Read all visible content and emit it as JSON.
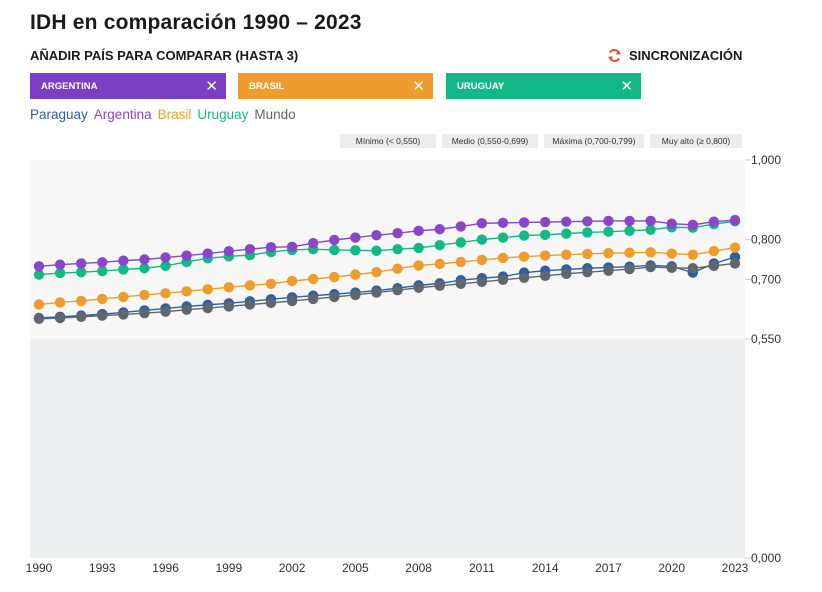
{
  "header": {
    "title": "IDH en comparación 1990 – 2023",
    "subtitle": "AÑADIR PAÍS PARA COMPARAR (HASTA 3)",
    "sync_label": "SINCRONIZACIÓN",
    "sync_icon": "sync-icon"
  },
  "chips": [
    {
      "label": "ARGENTINA",
      "color": "#7b3fc4",
      "close_icon": "close-icon"
    },
    {
      "label": "BRASIL",
      "color": "#ee9d2c",
      "close_icon": "close-icon"
    },
    {
      "label": "URUGUAY",
      "color": "#12b886",
      "close_icon": "close-icon"
    }
  ],
  "legend": [
    {
      "name": "Paraguay",
      "color": "#2f5f9e"
    },
    {
      "name": "Argentina",
      "color": "#8a45c8"
    },
    {
      "name": "Brasil",
      "color": "#ee9d2c"
    },
    {
      "name": "Uruguay",
      "color": "#12b886"
    },
    {
      "name": "Mundo",
      "color": "#5f6670"
    }
  ],
  "ranges": [
    {
      "label": "Mínimo (< 0,550)"
    },
    {
      "label": "Medio (0,550-0,699)"
    },
    {
      "label": "Máxima (0,700-0,799)"
    },
    {
      "label": "Muy alto (≥ 0,800)"
    }
  ],
  "chart_data": {
    "type": "line",
    "x": [
      1990,
      1991,
      1992,
      1993,
      1994,
      1995,
      1996,
      1997,
      1998,
      1999,
      2000,
      2001,
      2002,
      2003,
      2004,
      2005,
      2006,
      2007,
      2008,
      2009,
      2010,
      2011,
      2012,
      2013,
      2014,
      2015,
      2016,
      2017,
      2018,
      2019,
      2020,
      2021,
      2022,
      2023
    ],
    "x_tick_labels": [
      "1990",
      "1993",
      "1996",
      "1999",
      "2002",
      "2005",
      "2008",
      "2011",
      "2014",
      "2017",
      "2020",
      "2023"
    ],
    "y_tick_labels": [
      "1,000",
      "0,800",
      "0,700",
      "0,550",
      "0,000"
    ],
    "y_ticks": [
      1.0,
      0.8,
      0.7,
      0.55,
      0.0
    ],
    "ylim": [
      0,
      1
    ],
    "grid": false,
    "series": [
      {
        "name": "Paraguay",
        "color": "#2f5f9e",
        "values": [
          0.603,
          0.606,
          0.609,
          0.613,
          0.617,
          0.622,
          0.627,
          0.632,
          0.636,
          0.64,
          0.645,
          0.65,
          0.655,
          0.659,
          0.663,
          0.667,
          0.672,
          0.678,
          0.685,
          0.69,
          0.698,
          0.703,
          0.707,
          0.717,
          0.722,
          0.725,
          0.728,
          0.73,
          0.732,
          0.735,
          0.733,
          0.717,
          0.74,
          0.756
        ]
      },
      {
        "name": "Argentina",
        "color": "#8a45c8",
        "values": [
          0.733,
          0.737,
          0.74,
          0.743,
          0.747,
          0.75,
          0.755,
          0.76,
          0.765,
          0.771,
          0.776,
          0.781,
          0.782,
          0.791,
          0.799,
          0.805,
          0.811,
          0.816,
          0.822,
          0.826,
          0.833,
          0.841,
          0.842,
          0.843,
          0.844,
          0.845,
          0.846,
          0.847,
          0.847,
          0.847,
          0.84,
          0.837,
          0.845,
          0.849
        ]
      },
      {
        "name": "Brasil",
        "color": "#ee9d2c",
        "values": [
          0.637,
          0.642,
          0.646,
          0.651,
          0.656,
          0.661,
          0.665,
          0.67,
          0.675,
          0.68,
          0.685,
          0.689,
          0.696,
          0.701,
          0.706,
          0.712,
          0.718,
          0.727,
          0.735,
          0.739,
          0.744,
          0.749,
          0.754,
          0.757,
          0.76,
          0.762,
          0.764,
          0.766,
          0.767,
          0.768,
          0.765,
          0.762,
          0.771,
          0.78
        ]
      },
      {
        "name": "Uruguay",
        "color": "#12b886",
        "values": [
          0.712,
          0.716,
          0.718,
          0.721,
          0.725,
          0.728,
          0.734,
          0.744,
          0.753,
          0.758,
          0.761,
          0.769,
          0.774,
          0.776,
          0.774,
          0.773,
          0.772,
          0.776,
          0.779,
          0.786,
          0.793,
          0.8,
          0.805,
          0.81,
          0.812,
          0.815,
          0.818,
          0.82,
          0.822,
          0.825,
          0.831,
          0.83,
          0.839,
          0.846
        ]
      },
      {
        "name": "Mundo",
        "color": "#5f6670",
        "values": [
          0.601,
          0.603,
          0.606,
          0.609,
          0.612,
          0.615,
          0.619,
          0.624,
          0.628,
          0.632,
          0.637,
          0.641,
          0.646,
          0.651,
          0.656,
          0.661,
          0.667,
          0.673,
          0.679,
          0.684,
          0.689,
          0.694,
          0.699,
          0.704,
          0.709,
          0.714,
          0.718,
          0.722,
          0.726,
          0.731,
          0.729,
          0.728,
          0.734,
          0.74
        ]
      }
    ]
  }
}
